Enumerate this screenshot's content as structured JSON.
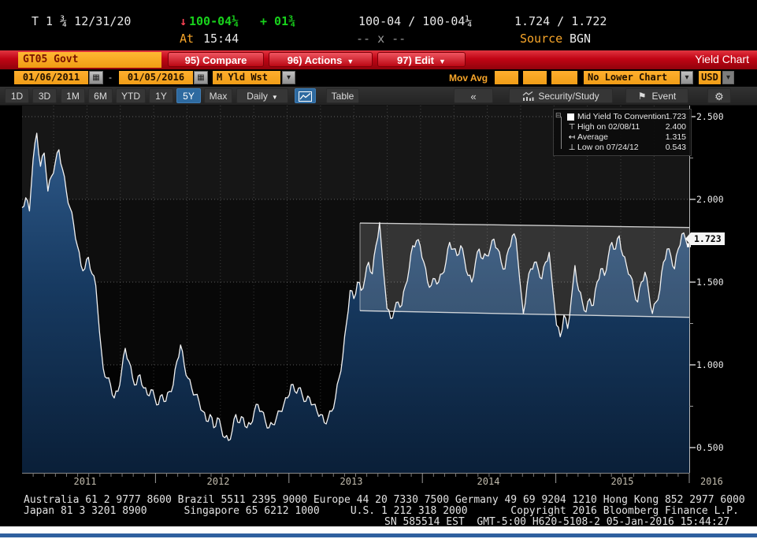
{
  "security_bar": {
    "ticker": "T 1 ¾ 12/31/20",
    "last_price": "100-04¼",
    "change": "+ 01¾",
    "bid_ask": "100-04 / 100-04¼",
    "yield_pair": "1.724 / 1.722",
    "at_label": "At",
    "at_time": "15:44",
    "x_status": "-- x --",
    "source_label": "Source",
    "source_value": "BGN"
  },
  "menu_bar": {
    "ticker_box": "GT05 Govt",
    "compare": "95) Compare",
    "actions": "96) Actions",
    "edit": "97) Edit",
    "title": "Yield Chart"
  },
  "settings_bar": {
    "date_from": "01/06/2011",
    "dash": "-",
    "date_to": "01/05/2016",
    "field": "M Yld Wst",
    "mov_avg_label": "Mov Avg",
    "lower_chart": "No Lower Chart",
    "currency": "USD"
  },
  "toolbar": {
    "ranges": [
      "1D",
      "3D",
      "1M",
      "6M",
      "YTD",
      "1Y",
      "5Y",
      "Max"
    ],
    "selected_range": "5Y",
    "period": "Daily",
    "table_label": "Table",
    "collapse": "«",
    "security_study": "Security/Study",
    "event": "Event"
  },
  "icons": {
    "down_arrow": "↓",
    "dropdown": "▾",
    "menu_arrow": "▼",
    "calendar": "▦",
    "gear": "⚙",
    "flag": "⚑",
    "legend_collapse": "⊟",
    "high_marker": "⊤",
    "avg_marker": "↤",
    "low_marker": "⊥"
  },
  "legend": {
    "items": [
      {
        "label": "Mid Yield To Convention",
        "value": "1.723",
        "marker": "square"
      },
      {
        "label": "High on 02/08/11",
        "value": "2.400",
        "marker": "high"
      },
      {
        "label": "Average",
        "value": "1.315",
        "marker": "average"
      },
      {
        "label": "Low on 07/24/12",
        "value": "0.543",
        "marker": "low"
      }
    ]
  },
  "chart_data": {
    "type": "area",
    "title": "Yield Chart",
    "security": "GT05 Govt",
    "series_name": "Mid Yield To Convention",
    "x_start": "01/06/2011",
    "x_end": "01/05/2016",
    "sampling": "uniform, ~3 points per month",
    "ylim": [
      0.35,
      2.56
    ],
    "yticks": [
      2.5,
      2.0,
      1.5,
      1.0,
      0.5
    ],
    "ytick_labels": [
      "2.500",
      "2.000",
      "1.500",
      "1.000",
      "0.500"
    ],
    "xtick_years": [
      "2011",
      "2012",
      "2013",
      "2014",
      "2015",
      "2016"
    ],
    "last_value": 1.723,
    "last_label": "1.723",
    "stats": {
      "high": {
        "date": "02/08/11",
        "value": 2.4
      },
      "average": 1.315,
      "low": {
        "date": "07/24/12",
        "value": 0.543
      }
    },
    "channel": {
      "x_start_frac": 0.5065,
      "x_end_frac": 1.0,
      "top_start": 1.857,
      "top_end": 1.83,
      "bottom_start": 1.327,
      "bottom_end": 1.287
    },
    "values": [
      1.95,
      2.01,
      1.93,
      2.24,
      2.4,
      2.2,
      2.28,
      2.05,
      2.14,
      2.22,
      2.3,
      2.18,
      2.05,
      1.95,
      1.85,
      1.72,
      1.6,
      1.58,
      1.65,
      1.55,
      1.48,
      1.2,
      0.98,
      0.92,
      0.88,
      0.8,
      0.84,
      0.96,
      1.1,
      1.02,
      0.92,
      0.88,
      0.94,
      0.86,
      0.82,
      0.85,
      0.8,
      0.76,
      0.82,
      0.78,
      0.84,
      0.88,
      1.02,
      1.12,
      1.0,
      0.92,
      0.86,
      0.82,
      0.78,
      0.72,
      0.66,
      0.7,
      0.62,
      0.68,
      0.62,
      0.56,
      0.543,
      0.6,
      0.7,
      0.65,
      0.68,
      0.62,
      0.64,
      0.72,
      0.76,
      0.72,
      0.66,
      0.62,
      0.64,
      0.68,
      0.72,
      0.76,
      0.8,
      0.88,
      0.84,
      0.86,
      0.82,
      0.78,
      0.8,
      0.76,
      0.72,
      0.7,
      0.65,
      0.68,
      0.72,
      0.8,
      0.92,
      1.05,
      1.25,
      1.45,
      1.4,
      1.5,
      1.45,
      1.52,
      1.62,
      1.55,
      1.72,
      1.86,
      1.58,
      1.34,
      1.28,
      1.33,
      1.38,
      1.36,
      1.48,
      1.58,
      1.72,
      1.75,
      1.72,
      1.62,
      1.5,
      1.48,
      1.52,
      1.5,
      1.55,
      1.62,
      1.74,
      1.7,
      1.66,
      1.72,
      1.64,
      1.54,
      1.5,
      1.62,
      1.7,
      1.64,
      1.66,
      1.7,
      1.76,
      1.7,
      1.62,
      1.58,
      1.7,
      1.78,
      1.76,
      1.52,
      1.31,
      1.48,
      1.58,
      1.62,
      1.58,
      1.52,
      1.62,
      1.68,
      1.45,
      1.24,
      1.17,
      1.3,
      1.22,
      1.4,
      1.6,
      1.45,
      1.38,
      1.32,
      1.4,
      1.36,
      1.5,
      1.58,
      1.54,
      1.65,
      1.74,
      1.7,
      1.78,
      1.66,
      1.6,
      1.54,
      1.45,
      1.38,
      1.5,
      1.56,
      1.44,
      1.31,
      1.38,
      1.45,
      1.62,
      1.7,
      1.66,
      1.58,
      1.7,
      1.79,
      1.76,
      1.723
    ]
  },
  "footer": {
    "line1": "Australia 61 2 9777 8600 Brazil 5511 2395 9000 Europe 44 20 7330 7500 Germany 49 69 9204 1210 Hong Kong 852 2977 6000",
    "line2": "Japan 81 3 3201 8900      Singapore 65 6212 1000     U.S. 1 212 318 2000       Copyright 2016 Bloomberg Finance L.P.",
    "line3": "SN 585514 EST  GMT-5:00 H620-5108-2 05-Jan-2016 15:44:27"
  },
  "colors": {
    "amber": "#f5a01e",
    "menu_red": "#c00414",
    "price_green": "#18d21c",
    "area_fill_top": "#2f5a8a",
    "area_fill_bottom": "#0a1f38",
    "selected_blue": "#2e6aa0",
    "footer_blue": "#2e5f9e",
    "line_white": "#f2f2f2"
  }
}
